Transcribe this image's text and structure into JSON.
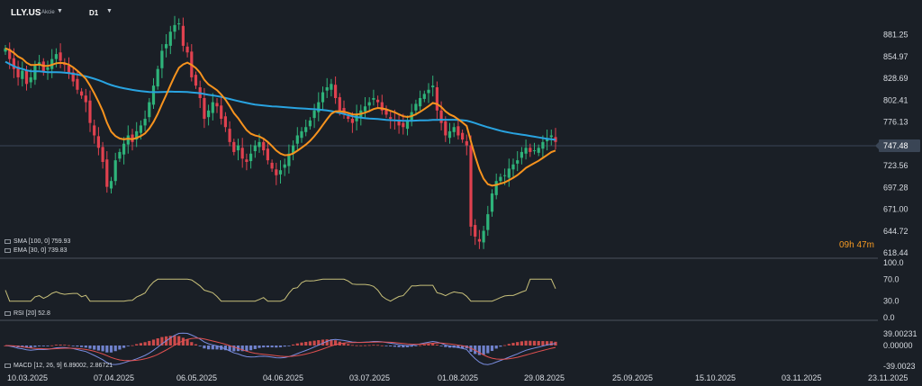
{
  "header": {
    "symbol": "LLY.US",
    "symbol_sub": "Akcie",
    "timeframe": "D1"
  },
  "countdown": "09h 47m",
  "indicators": {
    "sma": "SMA [100, 0]  759.93",
    "ema": "EMA [30, 0]  739.83",
    "rsi": "RSI [20]  52.8",
    "macd": "MACD [12, 26, 9]  6.89002,  2.86721"
  },
  "colors": {
    "background": "#1a1f26",
    "up_candle": "#2eb37a",
    "down_candle": "#e0414f",
    "sma": "#29a3e0",
    "ema": "#f7931e",
    "rsi": "#c8c07a",
    "macd_line": "#7a8de0",
    "signal_line": "#e05050",
    "current_price": "#3a4555"
  },
  "chart_data": {
    "type": "candlestick",
    "x_tick_labels": [
      "10.03.2025",
      "07.04.2025",
      "06.05.2025",
      "04.06.2025",
      "03.07.2025",
      "01.08.2025",
      "29.08.2025",
      "25.09.2025",
      "15.10.2025",
      "03.11.2025",
      "23.11.2025"
    ],
    "y_tick_labels": [
      "881.25",
      "854.97",
      "828.69",
      "802.41",
      "776.13",
      "723.56",
      "697.28",
      "671.00",
      "644.72",
      "618.44"
    ],
    "current_price": 747.48,
    "price_ylim": [
      618.44,
      900
    ],
    "ohlc_close": [
      865,
      852,
      840,
      830,
      838,
      822,
      830,
      845,
      848,
      836,
      842,
      852,
      858,
      850,
      845,
      835,
      825,
      815,
      808,
      800,
      775,
      760,
      745,
      728,
      698,
      705,
      730,
      740,
      750,
      760,
      752,
      765,
      772,
      780,
      800,
      820,
      840,
      862,
      870,
      885,
      893,
      895,
      868,
      860,
      830,
      820,
      805,
      780,
      790,
      800,
      795,
      780,
      770,
      752,
      740,
      748,
      732,
      728,
      738,
      748,
      752,
      742,
      730,
      720,
      712,
      718,
      725,
      738,
      748,
      760,
      765,
      770,
      778,
      790,
      800,
      812,
      818,
      822,
      805,
      790,
      785,
      780,
      775,
      785,
      790,
      795,
      800,
      805,
      800,
      790,
      785,
      780,
      778,
      772,
      770,
      778,
      788,
      798,
      805,
      810,
      815,
      820,
      790,
      775,
      760,
      765,
      770,
      760,
      755,
      748,
      650,
      638,
      632,
      645,
      665,
      690,
      705,
      710,
      712,
      720,
      725,
      730,
      740,
      745,
      740,
      742,
      745,
      752,
      755,
      760,
      752
    ],
    "sma_100": 759.93,
    "ema_30": 739.83,
    "rsi": {
      "period": 20,
      "last": 52.8,
      "ylim": [
        0,
        100
      ],
      "ticks": [
        "100.0",
        "70.0",
        "30.0",
        "0.0"
      ]
    },
    "macd": {
      "params": [
        12,
        26,
        9
      ],
      "macd_last": 6.89002,
      "signal_last": 2.86721,
      "ticks": [
        "39.00231",
        "0.00000",
        "-39.0023"
      ]
    }
  }
}
